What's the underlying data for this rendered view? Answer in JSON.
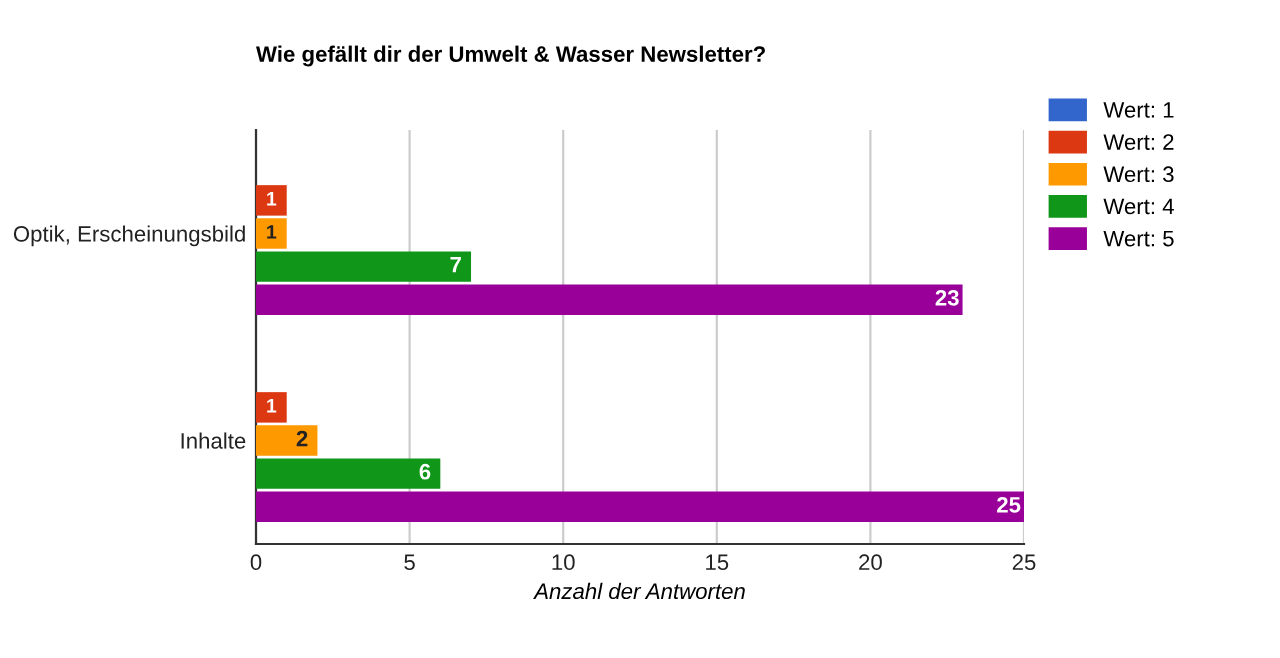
{
  "chart_data": {
    "type": "bar",
    "orientation": "horizontal",
    "title": "Wie gefällt dir der Umwelt & Wasser Newsletter?",
    "xlabel": "Anzahl der Antworten",
    "categories": [
      "Optik, Erscheinungsbild",
      "Inhalte"
    ],
    "series": [
      {
        "name": "Wert: 1",
        "color": "#3366cc",
        "values": [
          0,
          0
        ],
        "value_labels": [
          null,
          null
        ]
      },
      {
        "name": "Wert: 2",
        "color": "#dc3912",
        "values": [
          1,
          1
        ],
        "value_labels": [
          "1",
          "1"
        ]
      },
      {
        "name": "Wert: 3",
        "color": "#ff9900",
        "values": [
          1,
          2
        ],
        "value_labels": [
          "1",
          "2"
        ]
      },
      {
        "name": "Wert: 4",
        "color": "#109618",
        "values": [
          7,
          6
        ],
        "value_labels": [
          "7",
          "6"
        ]
      },
      {
        "name": "Wert: 5",
        "color": "#990099",
        "values": [
          23,
          25
        ],
        "value_labels": [
          "23",
          "25"
        ]
      }
    ],
    "xlim": [
      0,
      25
    ],
    "xticks": [
      0,
      5,
      10,
      15,
      20,
      25
    ],
    "grid": "x",
    "legend": "top right"
  }
}
